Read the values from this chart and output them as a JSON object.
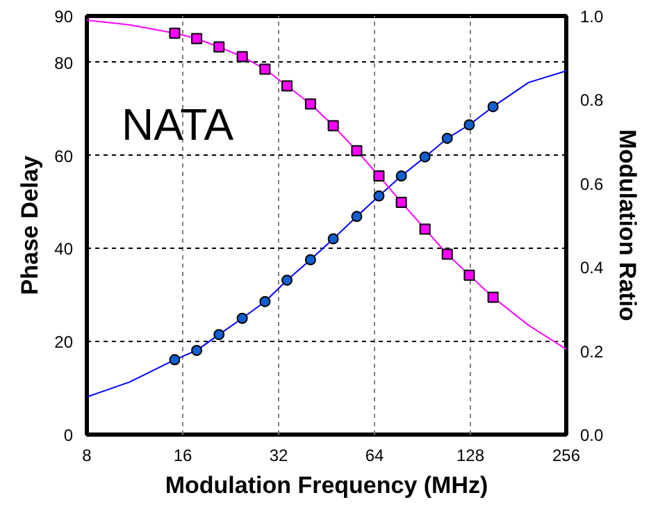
{
  "chart_data": {
    "type": "scatter",
    "xlabel": "Modulation Frequency (MHz)",
    "ylabel": "Phase Delay",
    "y2label": "Modulation Ratio",
    "annotations": [
      "NATA"
    ],
    "log": "x",
    "grid": true,
    "xlim": [
      8,
      256
    ],
    "xticks": [
      8,
      16,
      32,
      64,
      128,
      256
    ],
    "ylim": [
      0,
      90
    ],
    "yticks": [
      0,
      20,
      40,
      60,
      80,
      90
    ],
    "y2lim": [
      0,
      1.0
    ],
    "y2ticks": [
      {
        "value": 0,
        "label": "0.0"
      },
      {
        "value": 0.2,
        "label": "0.2"
      },
      {
        "value": 0.4,
        "label": "0.4"
      },
      {
        "value": 0.6,
        "label": "0.6"
      },
      {
        "value": 0.8,
        "label": "0.8"
      },
      {
        "value": 1.0,
        "label": "1.0"
      }
    ],
    "x": [
      15.1,
      17.7,
      20.8,
      24.6,
      29.0,
      34.0,
      40.3,
      47.5,
      56.3,
      66.1,
      77.7,
      92.2,
      108.3,
      127,
      150.8
    ],
    "series": [
      {
        "type": "line",
        "color": "#0000ff",
        "marker": "none",
        "x": [
          8,
          10.9,
          15.1,
          17.7,
          20.8,
          24.6,
          29.0,
          34.0,
          40.3,
          47.5,
          56.3,
          66.1,
          77.7,
          92.2,
          108.3,
          127,
          150.8,
          195,
          256
        ],
        "values": [
          8.1,
          11.3,
          16.1,
          18.1,
          21.5,
          25.0,
          28.6,
          33.2,
          37.6,
          42.1,
          46.9,
          51.3,
          55.6,
          59.7,
          63.7,
          66.6,
          70.5,
          75.7,
          78.2
        ]
      },
      {
        "type": "line",
        "color": "#ff00ff",
        "marker": "none",
        "axis": "y2",
        "x": [
          8,
          10.9,
          15.1,
          17.7,
          20.8,
          24.6,
          29.0,
          34.0,
          40.3,
          47.5,
          56.3,
          66.1,
          77.7,
          92.2,
          108.3,
          127,
          150.8,
          195,
          256
        ],
        "values": [
          0.99,
          0.979,
          0.959,
          0.946,
          0.926,
          0.903,
          0.873,
          0.833,
          0.79,
          0.738,
          0.678,
          0.618,
          0.555,
          0.491,
          0.431,
          0.381,
          0.328,
          0.261,
          0.204
        ]
      },
      {
        "color": "#1060d0",
        "marker": "circle",
        "values": [
          16.1,
          18.1,
          21.5,
          25.0,
          28.6,
          33.2,
          37.6,
          42.1,
          46.9,
          51.3,
          55.6,
          59.7,
          63.7,
          66.6,
          70.5
        ]
      },
      {
        "color": "#ff00ff",
        "marker": "square",
        "axis": "y2",
        "values": [
          0.959,
          0.946,
          0.926,
          0.903,
          0.873,
          0.833,
          0.79,
          0.738,
          0.678,
          0.618,
          0.555,
          0.491,
          0.431,
          0.381,
          0.328
        ]
      }
    ]
  }
}
